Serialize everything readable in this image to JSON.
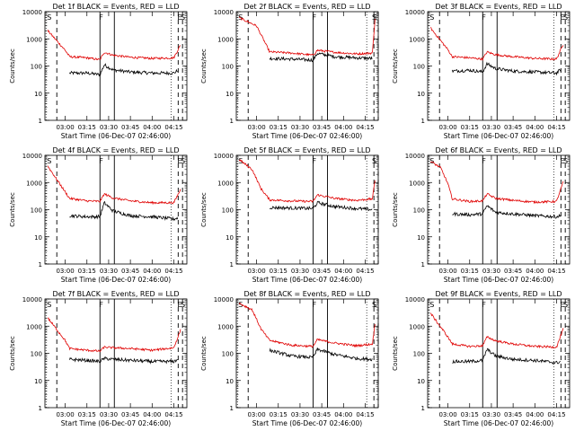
{
  "colors": {
    "events": "#000000",
    "lld": "#e00000",
    "axes": "#000000"
  },
  "shared": {
    "xlabel": "Start Time (06-Dec-07 02:46:00)",
    "ylabel": "Counts/sec",
    "x_ticks": [
      "03:00",
      "03:15",
      "03:30",
      "03:45",
      "04:00",
      "04:15"
    ],
    "y_ticks": [
      "1",
      "10",
      "100",
      "1000",
      "10000"
    ]
  },
  "chart_data": [
    {
      "type": "line",
      "title": "Det 1f BLACK = Events, RED = LLD",
      "y_scale": "log",
      "ylim": [
        1,
        10000
      ],
      "markers": [
        {
          "t": "02:48",
          "label": "S"
        },
        {
          "t": "03:24",
          "label": "F"
        },
        {
          "t": "04:18",
          "label": "E"
        },
        {
          "t": "04:21",
          "label": "S"
        }
      ],
      "series": [
        {
          "name": "Events",
          "color": "events",
          "points": [
            [
              "03:03",
              55
            ],
            [
              "03:15",
              55
            ],
            [
              "03:24",
              48
            ],
            [
              "03:27",
              110
            ],
            [
              "03:33",
              72
            ],
            [
              "03:45",
              60
            ],
            [
              "04:00",
              55
            ],
            [
              "04:15",
              55
            ],
            [
              "04:18",
              70
            ]
          ]
        },
        {
          "name": "LLD",
          "color": "lld",
          "points": [
            [
              "02:48",
              2000
            ],
            [
              "03:00",
              380
            ],
            [
              "03:03",
              220
            ],
            [
              "03:15",
              200
            ],
            [
              "03:24",
              170
            ],
            [
              "03:27",
              320
            ],
            [
              "03:33",
              250
            ],
            [
              "03:45",
              210
            ],
            [
              "04:00",
              190
            ],
            [
              "04:15",
              200
            ],
            [
              "04:20",
              650
            ]
          ]
        }
      ]
    },
    {
      "type": "line",
      "title": "Det 2f BLACK = Events, RED = LLD",
      "y_scale": "log",
      "ylim": [
        1,
        10000
      ],
      "markers": [
        {
          "t": "02:48",
          "label": "S"
        },
        {
          "t": "03:39",
          "label": "F"
        },
        {
          "t": "04:21",
          "label": "E"
        },
        {
          "t": "04:24",
          "label": "S"
        }
      ],
      "series": [
        {
          "name": "Events",
          "color": "events",
          "points": [
            [
              "03:09",
              190
            ],
            [
              "03:24",
              180
            ],
            [
              "03:39",
              165
            ],
            [
              "03:42",
              290
            ],
            [
              "03:54",
              220
            ],
            [
              "04:09",
              200
            ],
            [
              "04:20",
              190
            ]
          ]
        },
        {
          "name": "LLD",
          "color": "lld",
          "points": [
            [
              "02:48",
              6000
            ],
            [
              "03:00",
              3000
            ],
            [
              "03:06",
              700
            ],
            [
              "03:09",
              330
            ],
            [
              "03:24",
              300
            ],
            [
              "03:39",
              250
            ],
            [
              "03:42",
              380
            ],
            [
              "03:54",
              320
            ],
            [
              "04:09",
              280
            ],
            [
              "04:20",
              300
            ],
            [
              "04:22",
              8000
            ]
          ]
        }
      ]
    },
    {
      "type": "line",
      "title": "Det 3f BLACK = Events, RED = LLD",
      "y_scale": "log",
      "ylim": [
        1,
        10000
      ],
      "markers": [
        {
          "t": "02:48",
          "label": "S"
        },
        {
          "t": "03:24",
          "label": "F"
        },
        {
          "t": "04:18",
          "label": "E"
        },
        {
          "t": "04:21",
          "label": "S"
        }
      ],
      "series": [
        {
          "name": "Events",
          "color": "events",
          "points": [
            [
              "03:03",
              65
            ],
            [
              "03:15",
              70
            ],
            [
              "03:24",
              60
            ],
            [
              "03:27",
              120
            ],
            [
              "03:33",
              80
            ],
            [
              "03:45",
              65
            ],
            [
              "04:00",
              60
            ],
            [
              "04:15",
              55
            ],
            [
              "04:18",
              75
            ]
          ]
        },
        {
          "name": "LLD",
          "color": "lld",
          "points": [
            [
              "02:48",
              2500
            ],
            [
              "03:00",
              400
            ],
            [
              "03:03",
              220
            ],
            [
              "03:15",
              200
            ],
            [
              "03:24",
              180
            ],
            [
              "03:27",
              330
            ],
            [
              "03:33",
              260
            ],
            [
              "03:45",
              220
            ],
            [
              "04:00",
              190
            ],
            [
              "04:15",
              180
            ],
            [
              "04:20",
              700
            ]
          ]
        }
      ]
    },
    {
      "type": "line",
      "title": "Det 4f BLACK = Events, RED = LLD",
      "y_scale": "log",
      "ylim": [
        1,
        10000
      ],
      "markers": [
        {
          "t": "02:48",
          "label": "S"
        },
        {
          "t": "03:24",
          "label": "F"
        },
        {
          "t": "04:18",
          "label": "E"
        },
        {
          "t": "04:21",
          "label": "S"
        }
      ],
      "series": [
        {
          "name": "Events",
          "color": "events",
          "points": [
            [
              "03:03",
              60
            ],
            [
              "03:15",
              55
            ],
            [
              "03:24",
              55
            ],
            [
              "03:27",
              180
            ],
            [
              "03:33",
              90
            ],
            [
              "03:45",
              60
            ],
            [
              "04:00",
              55
            ],
            [
              "04:15",
              45
            ],
            [
              "04:18",
              50
            ]
          ]
        },
        {
          "name": "LLD",
          "color": "lld",
          "points": [
            [
              "02:48",
              4000
            ],
            [
              "03:00",
              450
            ],
            [
              "03:03",
              260
            ],
            [
              "03:15",
              210
            ],
            [
              "03:24",
              200
            ],
            [
              "03:27",
              380
            ],
            [
              "03:33",
              270
            ],
            [
              "03:45",
              210
            ],
            [
              "04:00",
              180
            ],
            [
              "04:15",
              180
            ],
            [
              "04:20",
              600
            ]
          ]
        }
      ]
    },
    {
      "type": "line",
      "title": "Det 5f BLACK = Events, RED = LLD",
      "y_scale": "log",
      "ylim": [
        1,
        10000
      ],
      "markers": [
        {
          "t": "02:48",
          "label": "S"
        },
        {
          "t": "03:39",
          "label": "F"
        },
        {
          "t": "04:21",
          "label": "L"
        },
        {
          "t": "04:24",
          "label": "S"
        }
      ],
      "series": [
        {
          "name": "Events",
          "color": "events",
          "points": [
            [
              "03:09",
              120
            ],
            [
              "03:24",
              115
            ],
            [
              "03:39",
              110
            ],
            [
              "03:42",
              180
            ],
            [
              "03:54",
              130
            ],
            [
              "04:09",
              110
            ],
            [
              "04:20",
              100
            ]
          ]
        },
        {
          "name": "LLD",
          "color": "lld",
          "points": [
            [
              "02:48",
              7000
            ],
            [
              "02:57",
              3000
            ],
            [
              "03:03",
              600
            ],
            [
              "03:09",
              230
            ],
            [
              "03:24",
              210
            ],
            [
              "03:39",
              200
            ],
            [
              "03:42",
              350
            ],
            [
              "03:54",
              260
            ],
            [
              "04:09",
              220
            ],
            [
              "04:20",
              250
            ],
            [
              "04:22",
              1500
            ]
          ]
        }
      ]
    },
    {
      "type": "line",
      "title": "Det 6f BLACK = Events, RED = LLD",
      "y_scale": "log",
      "ylim": [
        1,
        10000
      ],
      "markers": [
        {
          "t": "02:48",
          "label": "S"
        },
        {
          "t": "03:24",
          "label": "F"
        },
        {
          "t": "04:18",
          "label": "E"
        },
        {
          "t": "04:21",
          "label": "S"
        }
      ],
      "series": [
        {
          "name": "Events",
          "color": "events",
          "points": [
            [
              "03:03",
              70
            ],
            [
              "03:15",
              65
            ],
            [
              "03:24",
              70
            ],
            [
              "03:27",
              140
            ],
            [
              "03:33",
              80
            ],
            [
              "03:45",
              70
            ],
            [
              "04:00",
              60
            ],
            [
              "04:15",
              55
            ],
            [
              "04:18",
              60
            ]
          ]
        },
        {
          "name": "LLD",
          "color": "lld",
          "points": [
            [
              "02:48",
              6000
            ],
            [
              "02:55",
              3500
            ],
            [
              "03:00",
              900
            ],
            [
              "03:03",
              250
            ],
            [
              "03:15",
              200
            ],
            [
              "03:24",
              210
            ],
            [
              "03:27",
              380
            ],
            [
              "03:33",
              260
            ],
            [
              "03:45",
              220
            ],
            [
              "04:00",
              190
            ],
            [
              "04:15",
              200
            ],
            [
              "04:20",
              1200
            ]
          ]
        }
      ]
    },
    {
      "type": "line",
      "title": "Det 7f BLACK = Events, RED = LLD",
      "y_scale": "log",
      "ylim": [
        1,
        10000
      ],
      "markers": [
        {
          "t": "02:48",
          "label": "S"
        },
        {
          "t": "03:24",
          "label": "F"
        },
        {
          "t": "04:18",
          "label": "E"
        },
        {
          "t": "04:21",
          "label": "S"
        }
      ],
      "series": [
        {
          "name": "Events",
          "color": "events",
          "points": [
            [
              "03:03",
              60
            ],
            [
              "03:15",
              55
            ],
            [
              "03:24",
              50
            ],
            [
              "03:27",
              65
            ],
            [
              "03:33",
              60
            ],
            [
              "03:45",
              55
            ],
            [
              "04:00",
              50
            ],
            [
              "04:15",
              50
            ],
            [
              "04:18",
              60
            ]
          ]
        },
        {
          "name": "LLD",
          "color": "lld",
          "points": [
            [
              "02:48",
              2000
            ],
            [
              "03:00",
              300
            ],
            [
              "03:03",
              150
            ],
            [
              "03:15",
              130
            ],
            [
              "03:24",
              120
            ],
            [
              "03:27",
              170
            ],
            [
              "03:33",
              160
            ],
            [
              "03:45",
              150
            ],
            [
              "04:00",
              130
            ],
            [
              "04:15",
              160
            ],
            [
              "04:20",
              800
            ]
          ]
        }
      ]
    },
    {
      "type": "line",
      "title": "Det 8f BLACK = Events, RED = LLD",
      "y_scale": "log",
      "ylim": [
        1,
        10000
      ],
      "markers": [
        {
          "t": "02:48",
          "label": "S"
        },
        {
          "t": "03:39",
          "label": "F"
        },
        {
          "t": "04:21",
          "label": "L"
        },
        {
          "t": "04:24",
          "label": "S"
        }
      ],
      "series": [
        {
          "name": "Events",
          "color": "events",
          "points": [
            [
              "03:09",
              130
            ],
            [
              "03:24",
              80
            ],
            [
              "03:39",
              70
            ],
            [
              "03:42",
              140
            ],
            [
              "03:54",
              90
            ],
            [
              "04:09",
              65
            ],
            [
              "04:20",
              60
            ]
          ]
        },
        {
          "name": "LLD",
          "color": "lld",
          "points": [
            [
              "02:48",
              7000
            ],
            [
              "02:57",
              4000
            ],
            [
              "03:03",
              800
            ],
            [
              "03:09",
              300
            ],
            [
              "03:24",
              200
            ],
            [
              "03:39",
              180
            ],
            [
              "03:42",
              320
            ],
            [
              "03:54",
              240
            ],
            [
              "04:09",
              190
            ],
            [
              "04:20",
              220
            ],
            [
              "04:22",
              1500
            ]
          ]
        }
      ]
    },
    {
      "type": "line",
      "title": "Det 9f BLACK = Events, RED = LLD",
      "y_scale": "log",
      "ylim": [
        1,
        10000
      ],
      "markers": [
        {
          "t": "02:48",
          "label": "S"
        },
        {
          "t": "03:24",
          "label": "F"
        },
        {
          "t": "04:18",
          "label": "E"
        },
        {
          "t": "04:21",
          "label": "S"
        }
      ],
      "series": [
        {
          "name": "Events",
          "color": "events",
          "points": [
            [
              "03:03",
              50
            ],
            [
              "03:15",
              50
            ],
            [
              "03:24",
              55
            ],
            [
              "03:27",
              140
            ],
            [
              "03:33",
              80
            ],
            [
              "03:45",
              60
            ],
            [
              "04:00",
              55
            ],
            [
              "04:15",
              45
            ],
            [
              "04:18",
              50
            ]
          ]
        },
        {
          "name": "LLD",
          "color": "lld",
          "points": [
            [
              "02:48",
              3000
            ],
            [
              "03:00",
              400
            ],
            [
              "03:03",
              220
            ],
            [
              "03:15",
              180
            ],
            [
              "03:24",
              190
            ],
            [
              "03:27",
              400
            ],
            [
              "03:33",
              290
            ],
            [
              "03:45",
              220
            ],
            [
              "04:00",
              180
            ],
            [
              "04:15",
              170
            ],
            [
              "04:20",
              900
            ]
          ]
        }
      ]
    }
  ]
}
